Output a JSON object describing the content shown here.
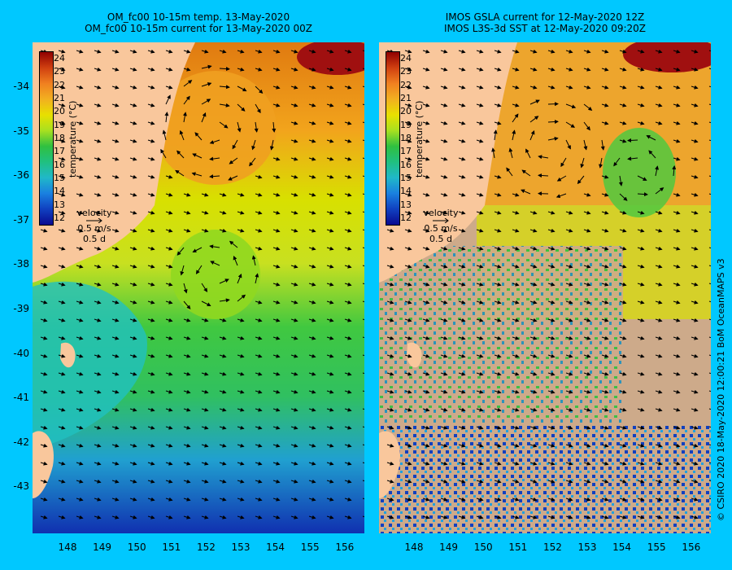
{
  "left_panel": {
    "title_line1": "OM_fc00 10-15m temp. 13-May-2020",
    "title_line2": "OM_fc00 10-15m current for 13-May-2020 00Z",
    "colorbar_label": "temperature (°C)",
    "legend": {
      "title": "velocity",
      "speed": "0.5 m/s",
      "duration": "0.5 d"
    }
  },
  "right_panel": {
    "title_line1": "IMOS GSLA current for 12-May-2020 12Z",
    "title_line2": "IMOS L3S-3d SST at 12-May-2020 09:20Z",
    "colorbar_label": "temperature (°C)",
    "legend": {
      "title": "velocity",
      "speed": "0.5 m/s",
      "duration": "0.5 d"
    }
  },
  "colorbar_ticks": [
    "24",
    "23",
    "22",
    "21",
    "20",
    "19",
    "18",
    "17",
    "16",
    "15",
    "14",
    "13",
    "12"
  ],
  "latitude_labels": [
    "-34",
    "-35",
    "-36",
    "-37",
    "-38",
    "-39",
    "-40",
    "-41",
    "-42",
    "-43"
  ],
  "longitude_labels": [
    "148",
    "149",
    "150",
    "151",
    "152",
    "153",
    "154",
    "155",
    "156"
  ],
  "credit": "© CSIRO 2020   18-May-2020 12:00:21 BoM OceanMAPS v3",
  "colors": {
    "background": "#00c8ff",
    "land": "#f9c79c",
    "no_data": "#cdaa8a",
    "warm": "#f0a020",
    "hot": "#a01010",
    "mid": "#e0e000",
    "green": "#30c040",
    "cool": "#20c0c0",
    "cold": "#1040c0"
  }
}
